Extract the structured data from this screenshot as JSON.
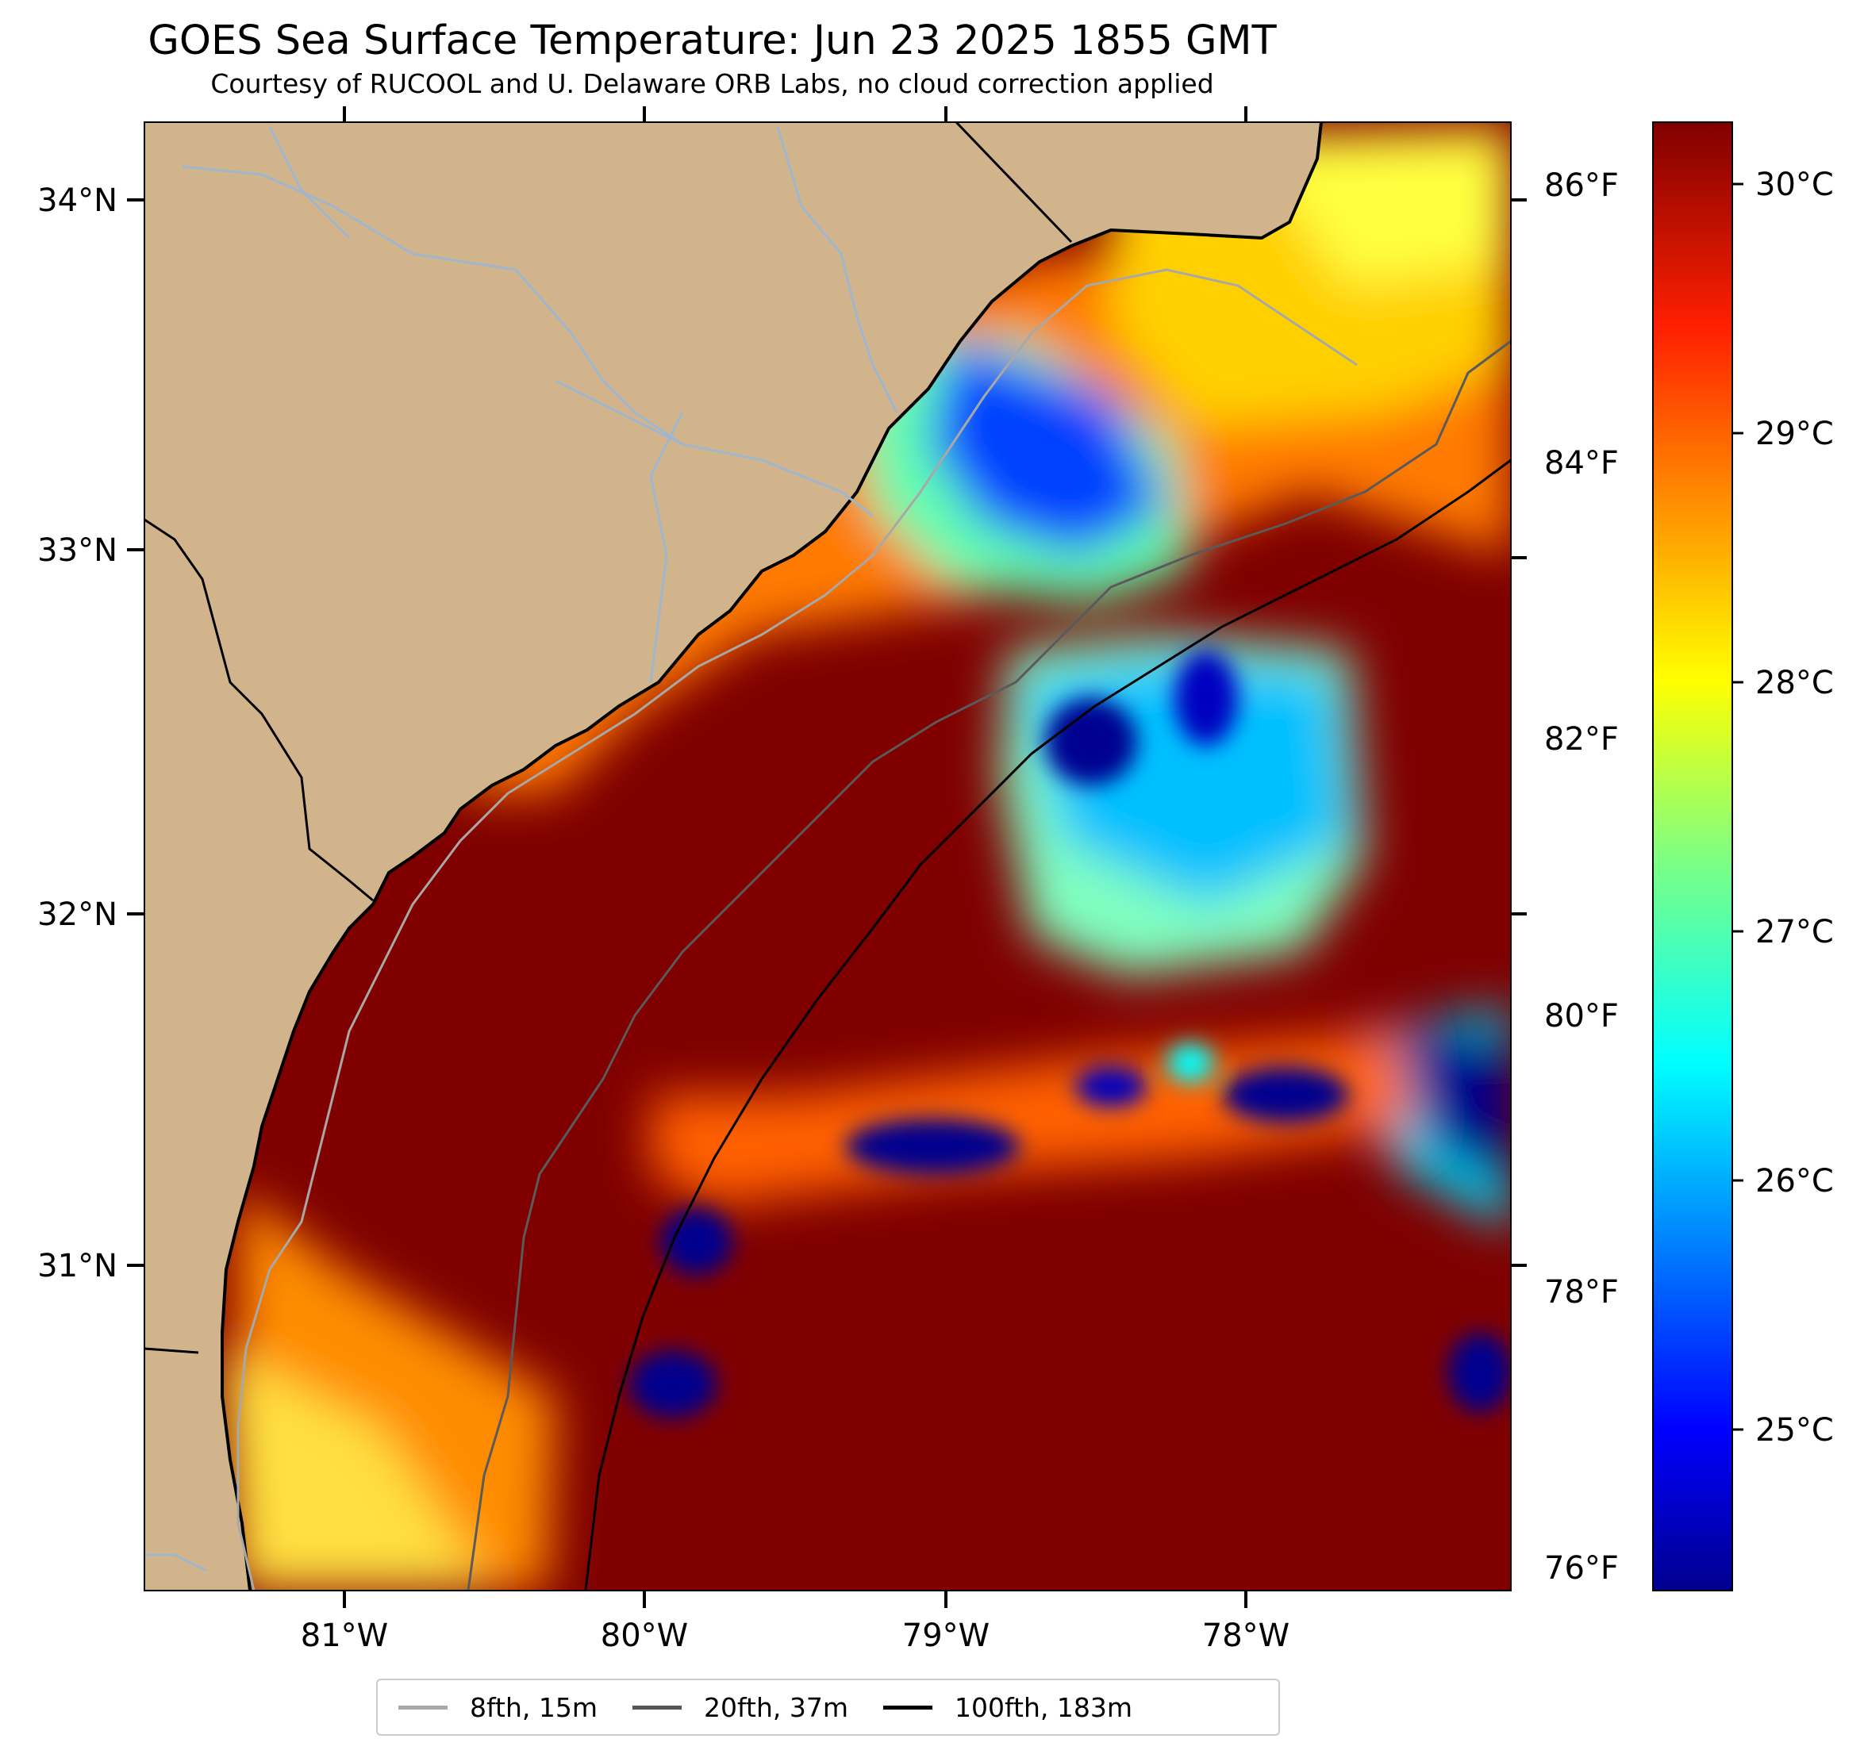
{
  "title": "GOES Sea Surface Temperature: Jun 23 2025 1855 GMT",
  "subtitle": "Courtesy of RUCOOL and U. Delaware ORB Labs, no cloud correction applied",
  "axes": {
    "lat_ticks": [
      "34°N",
      "33°N",
      "32°N",
      "31°N"
    ],
    "lon_ticks": [
      "81°W",
      "80°W",
      "79°W",
      "78°W"
    ],
    "f_ticks": [
      "86°F",
      "84°F",
      "82°F",
      "80°F",
      "78°F",
      "76°F"
    ]
  },
  "colorbar": {
    "colormap": "jet",
    "c_ticks": [
      "30°C",
      "29°C",
      "28°C",
      "27°C",
      "26°C",
      "25°C"
    ]
  },
  "legend": [
    {
      "label": "8fth, 15m",
      "color": "#a8a8a8"
    },
    {
      "label": "20fth, 37m",
      "color": "#555555"
    },
    {
      "label": "100fth, 183m",
      "color": "#000000"
    }
  ],
  "colors": {
    "land": "#d2b48c",
    "rivers": "#9fb6cd",
    "warm": "#800000",
    "cold": "#00008f"
  }
}
